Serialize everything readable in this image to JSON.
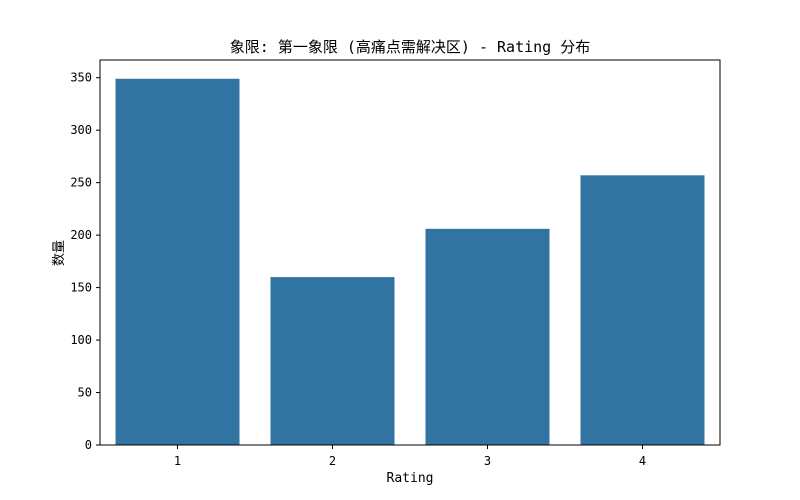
{
  "chart_data": {
    "type": "bar",
    "title": "象限: 第一象限 (高痛点需解决区) - Rating 分布",
    "xlabel": "Rating",
    "ylabel": "数量",
    "categories": [
      "1",
      "2",
      "3",
      "4"
    ],
    "values": [
      349,
      160,
      206,
      257
    ],
    "ylim": [
      0,
      350
    ],
    "yticks": [
      "0",
      "50",
      "100",
      "150",
      "200",
      "250",
      "300",
      "350"
    ],
    "ytick_values": [
      0,
      50,
      100,
      150,
      200,
      250,
      300,
      350
    ],
    "grid": false,
    "legend": "none",
    "bar_color": "#3274a1"
  }
}
